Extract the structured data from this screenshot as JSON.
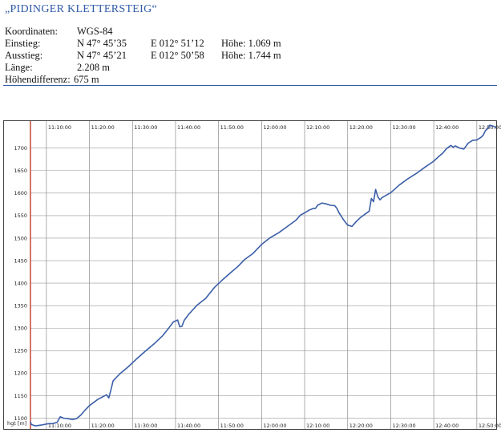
{
  "title": "„PIDINGER KLETTERSTEIG“",
  "info": {
    "coord_label": "Koordinaten:",
    "coord_value": "WGS-84",
    "start_label": "Einstieg:",
    "start_n": "N 47° 45’35",
    "start_e": "E 012° 51’12",
    "start_h": "Höhe: 1.069 m",
    "end_label": "Ausstieg:",
    "end_n": "N 47° 45’21",
    "end_e": "E 012° 50’58",
    "end_h": "Höhe: 1.744 m",
    "length_label": "Länge:",
    "length_value": "2.208 m",
    "diff_label": "Höhendifferenz:",
    "diff_value": "675 m"
  },
  "chart_data": {
    "type": "line",
    "ylabel": "hgt [m]",
    "x_unit": "minutes after 11:00",
    "xlim": [
      6.3,
      114.5
    ],
    "ylim": [
      1076,
      1760
    ],
    "y_ticks": [
      1100,
      1150,
      1200,
      1250,
      1300,
      1350,
      1400,
      1450,
      1500,
      1550,
      1600,
      1650,
      1700
    ],
    "x_ticks": [
      "11:10:00",
      "11:20:00",
      "11:30:00",
      "11:40:00",
      "11:50:00",
      "12:00:00",
      "12:10:00",
      "12:20:00",
      "12:30:00",
      "12:40:00",
      "12:50:00"
    ],
    "x_tick_minutes": [
      10,
      20,
      30,
      40,
      50,
      60,
      70,
      80,
      90,
      100,
      110
    ],
    "grid": true,
    "series": [
      {
        "color": "#3b5ea8",
        "x": [
          6.3,
          6.5,
          7.5,
          9,
          10.5,
          11.5,
          12.5,
          13.2,
          14,
          15,
          16,
          17,
          18,
          19,
          20,
          22,
          24,
          24.5,
          25,
          25.5,
          27,
          29,
          31,
          33,
          35,
          37,
          38.5,
          39.5,
          40.5,
          41,
          41.5,
          42,
          43,
          45,
          47,
          49,
          51,
          53,
          54.5,
          56,
          58,
          60,
          62,
          64,
          66,
          68,
          69,
          70,
          71,
          72,
          72.5,
          73,
          74,
          75,
          76,
          77,
          77.5,
          78,
          78.5,
          79,
          80,
          81,
          82,
          83,
          84,
          85,
          85.5,
          86,
          86.5,
          87,
          87.5,
          88,
          90,
          92,
          94,
          96,
          98,
          100,
          101,
          102,
          103,
          104,
          104.5,
          105,
          106,
          107,
          108,
          109,
          110,
          111,
          111.5,
          112,
          112.5,
          113,
          114,
          114.5
        ],
        "y": [
          1092,
          1086,
          1083,
          1085,
          1088,
          1088,
          1091,
          1103,
          1100,
          1099,
          1097,
          1099,
          1107,
          1118,
          1128,
          1142,
          1152,
          1145,
          1163,
          1183,
          1198,
          1214,
          1232,
          1249,
          1265,
          1283,
          1301,
          1314,
          1318,
          1303,
          1304,
          1317,
          1330,
          1351,
          1366,
          1390,
          1408,
          1425,
          1437,
          1452,
          1466,
          1486,
          1501,
          1512,
          1526,
          1540,
          1551,
          1556,
          1562,
          1566,
          1566,
          1573,
          1578,
          1576,
          1573,
          1572,
          1566,
          1556,
          1549,
          1541,
          1529,
          1526,
          1537,
          1546,
          1553,
          1560,
          1588,
          1581,
          1608,
          1592,
          1585,
          1590,
          1601,
          1618,
          1632,
          1644,
          1658,
          1671,
          1680,
          1688,
          1699,
          1706,
          1702,
          1705,
          1700,
          1698,
          1711,
          1717,
          1718,
          1724,
          1729,
          1739,
          1743,
          1751,
          1748,
          1745
        ]
      }
    ]
  }
}
